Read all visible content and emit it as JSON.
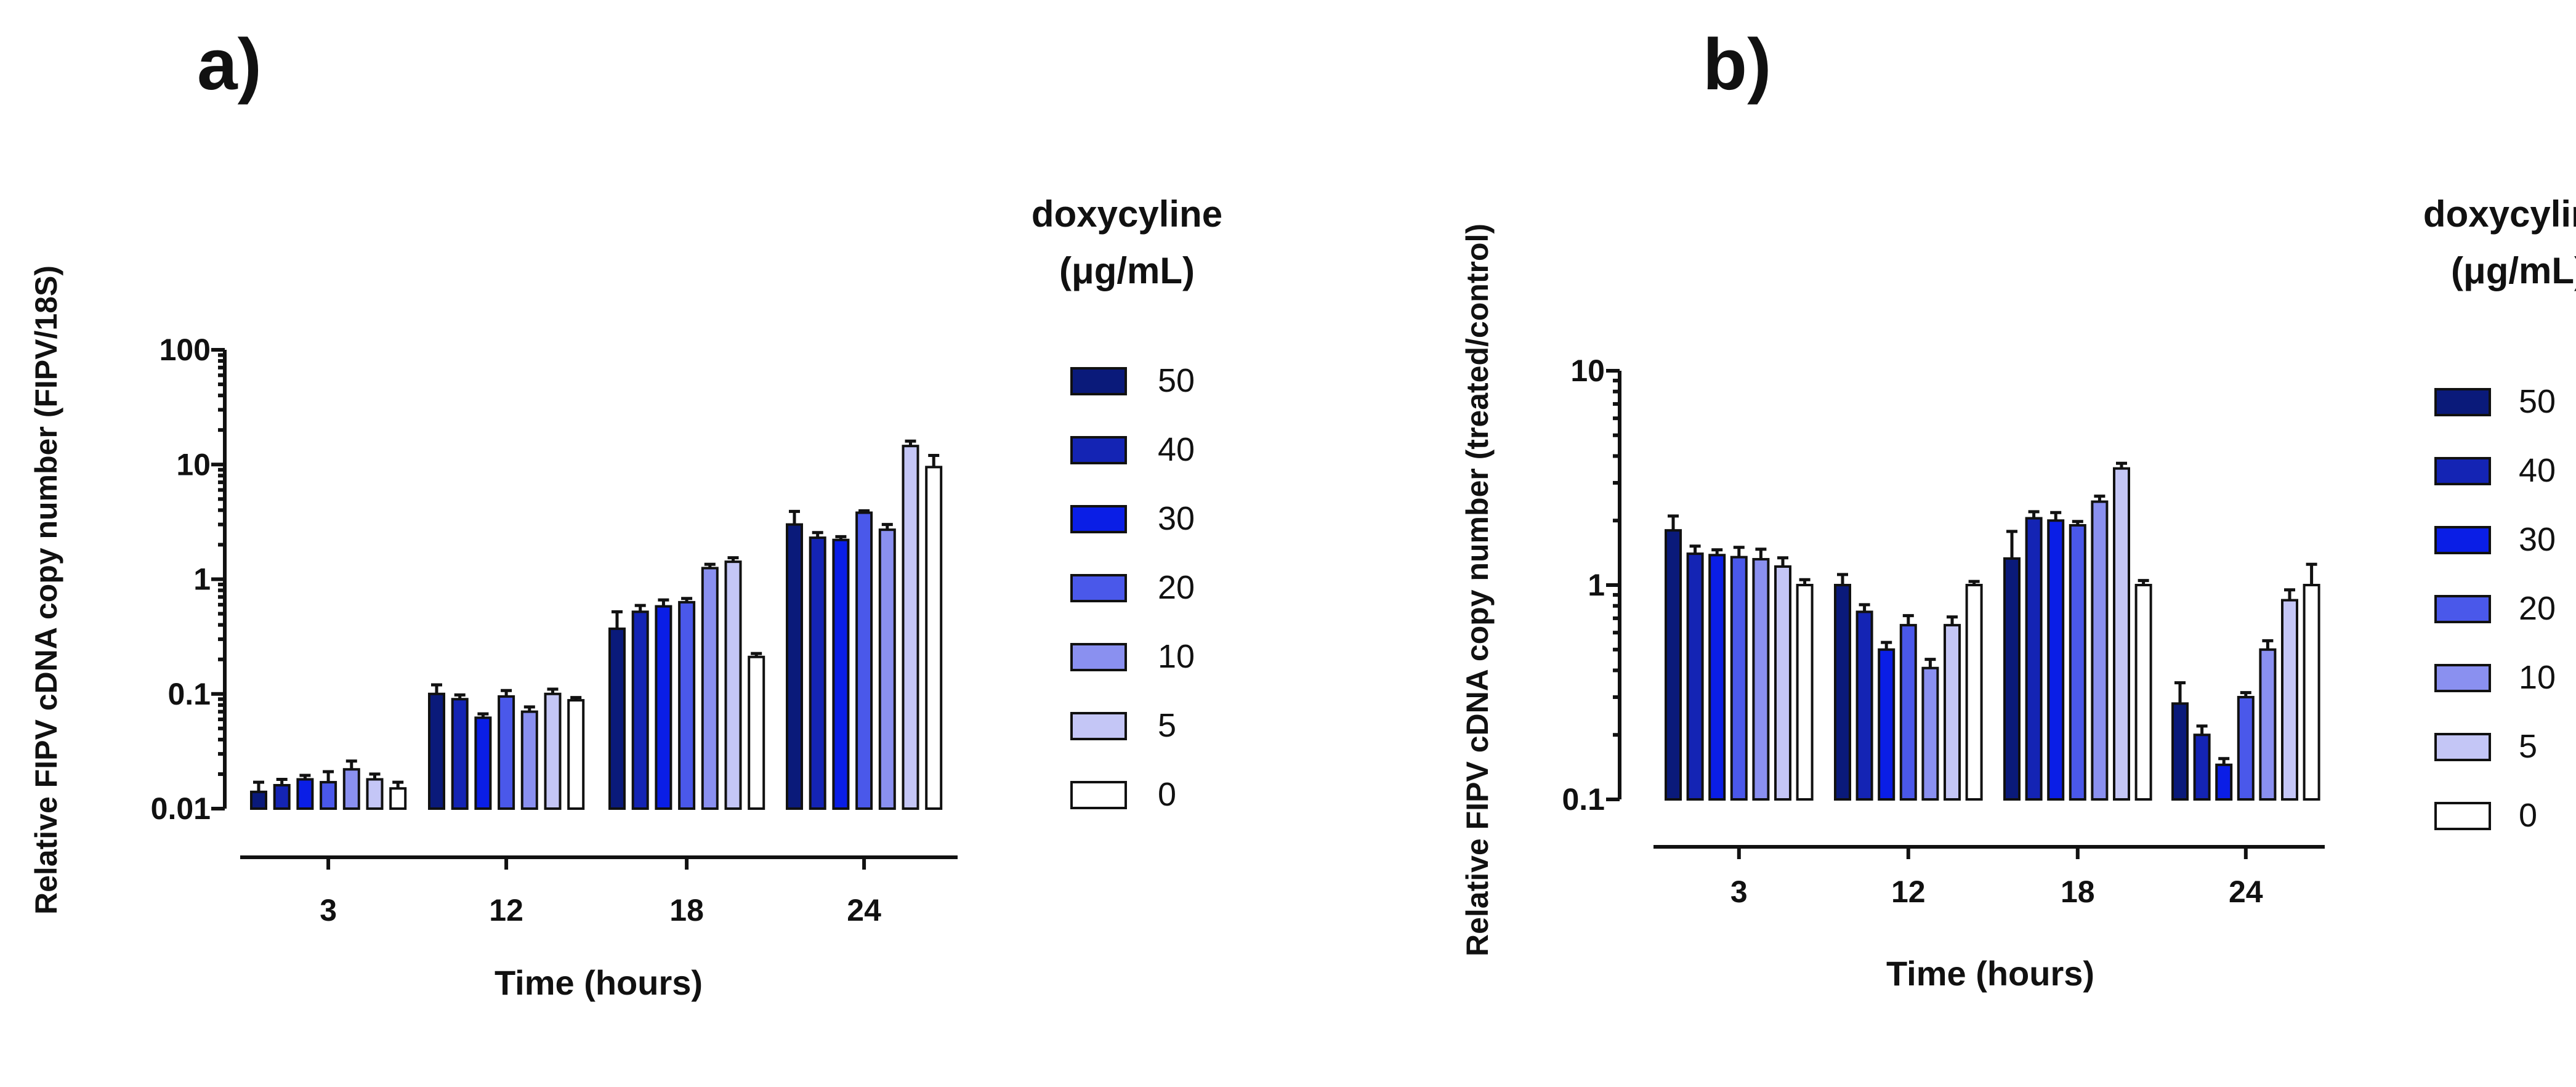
{
  "chart_data": [
    {
      "panel_label": "a)",
      "type": "bar",
      "scale": "log",
      "ylim": [
        0.01,
        100
      ],
      "yticks": [
        "0.01",
        "0.1",
        "1",
        "10",
        "100"
      ],
      "ytick_values": [
        0.01,
        0.1,
        1,
        10,
        100
      ],
      "ylabel": "Relative FIPV cDNA copy number (FIPV/18S)",
      "xlabel": "Time (hours)",
      "categories": [
        "3",
        "12",
        "18",
        "24"
      ],
      "legend_title_line1": "doxycyline",
      "legend_title_line2": "(μg/mL)",
      "series": [
        {
          "name": "50",
          "color": "#0a1a7a",
          "values": [
            0.014,
            0.1,
            0.37,
            3.0
          ],
          "errors": [
            0.003,
            0.02,
            0.15,
            0.9
          ]
        },
        {
          "name": "40",
          "color": "#1424b4",
          "values": [
            0.016,
            0.09,
            0.52,
            2.3
          ],
          "errors": [
            0.002,
            0.008,
            0.07,
            0.25
          ]
        },
        {
          "name": "30",
          "color": "#0a1ee6",
          "values": [
            0.018,
            0.062,
            0.58,
            2.2
          ],
          "errors": [
            0.0015,
            0.005,
            0.08,
            0.15
          ]
        },
        {
          "name": "20",
          "color": "#4a58ea",
          "values": [
            0.017,
            0.095,
            0.63,
            3.8
          ],
          "errors": [
            0.004,
            0.012,
            0.05,
            0.15
          ]
        },
        {
          "name": "10",
          "color": "#8a90f0",
          "values": [
            0.022,
            0.07,
            1.25,
            2.7
          ],
          "errors": [
            0.004,
            0.007,
            0.1,
            0.3
          ]
        },
        {
          "name": "5",
          "color": "#c4c6f6",
          "values": [
            0.018,
            0.1,
            1.42,
            14.5
          ],
          "errors": [
            0.002,
            0.01,
            0.12,
            1.5
          ]
        },
        {
          "name": "0",
          "color": "#ffffff",
          "values": [
            0.015,
            0.088,
            0.21,
            9.5
          ],
          "errors": [
            0.002,
            0.005,
            0.015,
            2.5
          ]
        }
      ]
    },
    {
      "panel_label": "b)",
      "type": "bar",
      "scale": "log",
      "ylim": [
        0.1,
        10
      ],
      "yticks": [
        "0.1",
        "1",
        "10"
      ],
      "ytick_values": [
        0.1,
        1,
        10
      ],
      "ylabel": "Relative FIPV cDNA copy number (treated/control)",
      "xlabel": "Time (hours)",
      "categories": [
        "3",
        "12",
        "18",
        "24"
      ],
      "legend_title_line1": "doxycyline",
      "legend_title_line2": "(μg/mL)",
      "series": [
        {
          "name": "50",
          "color": "#0a1a7a",
          "values": [
            1.8,
            1.0,
            1.33,
            0.28
          ],
          "errors": [
            0.3,
            0.12,
            0.45,
            0.07
          ]
        },
        {
          "name": "40",
          "color": "#1424b4",
          "values": [
            1.4,
            0.75,
            2.05,
            0.2
          ],
          "errors": [
            0.12,
            0.06,
            0.15,
            0.02
          ]
        },
        {
          "name": "30",
          "color": "#0a1ee6",
          "values": [
            1.38,
            0.5,
            2.0,
            0.145
          ],
          "errors": [
            0.08,
            0.04,
            0.18,
            0.01
          ]
        },
        {
          "name": "20",
          "color": "#4a58ea",
          "values": [
            1.35,
            0.65,
            1.9,
            0.3
          ],
          "errors": [
            0.15,
            0.07,
            0.08,
            0.015
          ]
        },
        {
          "name": "10",
          "color": "#8a90f0",
          "values": [
            1.32,
            0.41,
            2.45,
            0.5
          ],
          "errors": [
            0.15,
            0.04,
            0.15,
            0.05
          ]
        },
        {
          "name": "5",
          "color": "#c4c6f6",
          "values": [
            1.22,
            0.65,
            3.5,
            0.85
          ],
          "errors": [
            0.12,
            0.06,
            0.2,
            0.1
          ]
        },
        {
          "name": "0",
          "color": "#ffffff",
          "values": [
            1.0,
            1.0,
            1.0,
            1.0
          ],
          "errors": [
            0.06,
            0.04,
            0.05,
            0.25
          ]
        }
      ]
    }
  ]
}
